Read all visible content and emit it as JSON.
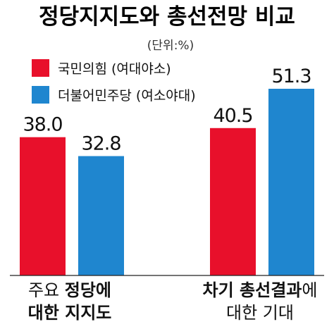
{
  "chart_data": {
    "type": "bar",
    "title": "정당지지도와 총선전망 비교",
    "unit": "(단위:%)",
    "categories": [
      {
        "line1_normal": "주요 ",
        "line1_bold": "정당에",
        "line2_bold": "대한 지지도",
        "line2_normal": ""
      },
      {
        "line1_normal": "",
        "line1_bold": "차기 총선결과",
        "line1_tail": "에",
        "line2_normal": "대한 기대"
      }
    ],
    "series": [
      {
        "name": "국민의힘 (여대야소)",
        "color": "#e8102b",
        "values": [
          38.0,
          40.5
        ]
      },
      {
        "name": "더불어민주당 (여소야대)",
        "color": "#1f86cf",
        "values": [
          32.8,
          51.3
        ]
      }
    ],
    "value_labels": [
      [
        "38.0",
        "40.5"
      ],
      [
        "32.8",
        "51.3"
      ]
    ],
    "ylim": [
      0,
      60
    ]
  }
}
